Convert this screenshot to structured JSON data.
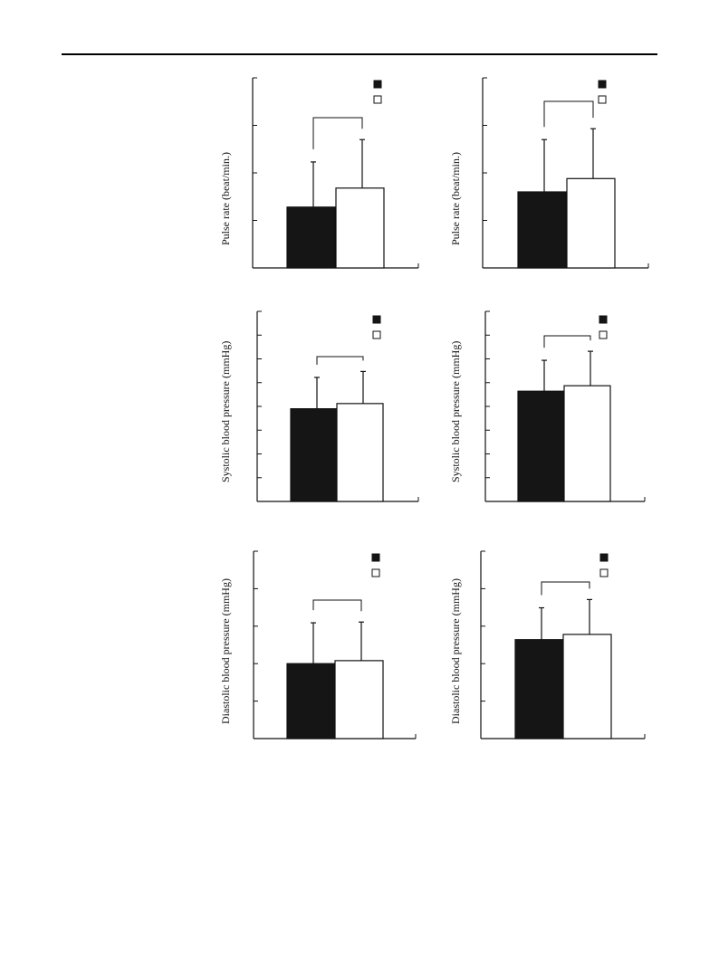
{
  "colors": {
    "solid": "#151515",
    "open": "#ffffff",
    "axis": "#111111"
  },
  "chart_data": [
    {
      "type": "bar",
      "title": "",
      "ylabel": "Pulse rate (beat/min.)",
      "ylim": [
        0,
        4
      ],
      "yticks": [
        0,
        1,
        2,
        3,
        4
      ],
      "legend": "top-right",
      "significance_bracket": true,
      "series": [
        {
          "fill": "solid",
          "value": 1.28,
          "error": 0.95
        },
        {
          "fill": "open",
          "value": 1.68,
          "error": 1.02
        }
      ]
    },
    {
      "type": "bar",
      "title": "",
      "ylabel": "Pulse rate (beat/min.)",
      "ylim": [
        0,
        4
      ],
      "yticks": [
        0,
        1,
        2,
        3,
        4
      ],
      "legend": "top-right",
      "significance_bracket": true,
      "series": [
        {
          "fill": "solid",
          "value": 1.6,
          "error": 1.1
        },
        {
          "fill": "open",
          "value": 1.88,
          "error": 1.05
        }
      ]
    },
    {
      "type": "bar",
      "title": "",
      "ylabel": "Systolic blood pressure (mmHg)",
      "ylim": [
        0,
        8
      ],
      "yticks": [
        0,
        1,
        2,
        3,
        4,
        5,
        6,
        7,
        8
      ],
      "legend": "top-right",
      "significance_bracket": true,
      "series": [
        {
          "fill": "solid",
          "value": 3.9,
          "error": 1.32
        },
        {
          "fill": "open",
          "value": 4.12,
          "error": 1.35
        }
      ]
    },
    {
      "type": "bar",
      "title": "",
      "ylabel": "Systolic blood pressure (mmHg)",
      "ylim": [
        0,
        8
      ],
      "yticks": [
        0,
        1,
        2,
        3,
        4,
        5,
        6,
        7,
        8
      ],
      "legend": "top-right",
      "significance_bracket": true,
      "series": [
        {
          "fill": "solid",
          "value": 4.64,
          "error": 1.3
        },
        {
          "fill": "open",
          "value": 4.87,
          "error": 1.45
        }
      ]
    },
    {
      "type": "bar",
      "title": "",
      "ylabel": "Diastolic blood pressure (mmHg)",
      "ylim": [
        0,
        5
      ],
      "yticks": [
        0,
        1,
        2,
        3,
        4,
        5
      ],
      "legend": "top-right",
      "significance_bracket": true,
      "series": [
        {
          "fill": "solid",
          "value": 2.0,
          "error": 1.09
        },
        {
          "fill": "open",
          "value": 2.08,
          "error": 1.03
        }
      ]
    },
    {
      "type": "bar",
      "title": "",
      "ylabel": "Diastolic blood pressure (mmHg)",
      "ylim": [
        0,
        5
      ],
      "yticks": [
        0,
        1,
        2,
        3,
        4,
        5
      ],
      "legend": "top-right",
      "significance_bracket": true,
      "series": [
        {
          "fill": "solid",
          "value": 2.64,
          "error": 0.85
        },
        {
          "fill": "open",
          "value": 2.78,
          "error": 0.93
        }
      ]
    }
  ]
}
